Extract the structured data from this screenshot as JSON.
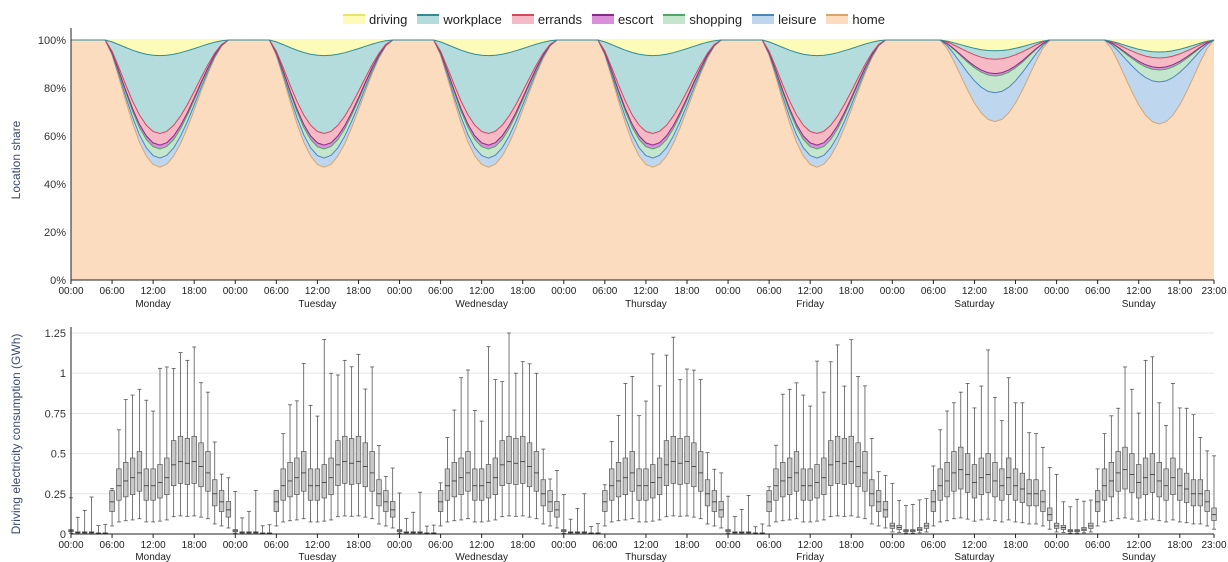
{
  "legend": [
    "driving",
    "workplace",
    "errands",
    "escort",
    "shopping",
    "leisure",
    "home"
  ],
  "colors": {
    "driving": {
      "fill": "#fdfbb8",
      "stroke": "#e8e36a"
    },
    "workplace": {
      "fill": "#b5dcdc",
      "stroke": "#2e8c98"
    },
    "errands": {
      "fill": "#f6bac6",
      "stroke": "#d8455f"
    },
    "escort": {
      "fill": "#d98fd9",
      "stroke": "#8c2a8c"
    },
    "shopping": {
      "fill": "#c4e6cc",
      "stroke": "#4ea865"
    },
    "leisure": {
      "fill": "#bfd6ef",
      "stroke": "#4d86c2"
    },
    "home": {
      "fill": "#fcdcbf",
      "stroke": "#d9a56e"
    },
    "box_fill": "#c8c8c8",
    "box_stroke": "#555555",
    "grid": "#e6e6e6",
    "axis_label": "#3a4a6b"
  },
  "chart_data": [
    {
      "type": "area",
      "stacked": true,
      "ylabel": "Location share",
      "ylim": [
        0,
        1
      ],
      "yticks": [
        "0%",
        "20%",
        "40%",
        "60%",
        "80%",
        "100%"
      ],
      "x_hours": [
        0,
        167
      ],
      "xtick_labels": [
        "00:00",
        "06:00",
        "12:00",
        "18:00",
        "00:00",
        "06:00",
        "12:00",
        "18:00",
        "00:00",
        "06:00",
        "12:00",
        "18:00",
        "00:00",
        "06:00",
        "12:00",
        "18:00",
        "00:00",
        "06:00",
        "12:00",
        "18:00",
        "00:00",
        "06:00",
        "12:00",
        "18:00",
        "00:00",
        "06:00",
        "12:00",
        "18:00",
        "00:00",
        "06:00",
        "12:00",
        "18:00",
        "00:00",
        "06:00",
        "12:00",
        "18:00",
        "00:00",
        "06:00",
        "12:00",
        "18:00",
        "00:00",
        "06:00",
        "12:00",
        "18:00",
        "00:00",
        "06:00",
        "12:00",
        "18:00",
        "00:00",
        "06:00",
        "12:00",
        "18:00",
        "00:00",
        "06:00",
        "12:00",
        "18:00",
        "00:00",
        "06:00",
        "12:00",
        "18:00",
        "00:00",
        "06:00",
        "12:00",
        "18:00",
        "00:00",
        "06:00",
        "12:00",
        "18:00",
        "00:00",
        "06:00",
        "12:00",
        "18:00",
        "00:00",
        "06:00",
        "12:00",
        "18:00",
        "00:00",
        "06:00",
        "12:00",
        "18:00",
        "00:00",
        "06:00",
        "12:00",
        "18:00",
        "00:00",
        "06:00",
        "12:00",
        "18:00",
        "00:00",
        "06:00",
        "12:00",
        "18:00",
        "00:00",
        "06:00",
        "12:00",
        "18:00",
        "00:00",
        "06:00",
        "12:00",
        "18:00",
        "00:00",
        "06:00",
        "12:00",
        "18:00",
        "00:00",
        "06:00",
        "12:00",
        "18:00",
        "00:00",
        "06:00",
        "12:00",
        "18:00",
        "00:00",
        "06:00",
        "12:00",
        "18:00",
        "00:00",
        "06:00",
        "12:00",
        "18:00",
        "00:00",
        "06:00",
        "12:00",
        "18:00",
        "00:00",
        "06:00",
        "12:00",
        "18:00",
        "00:00",
        "06:00",
        "12:00",
        "18:00",
        "00:00",
        "06:00",
        "12:00",
        "18:00",
        "00:00",
        "06:00",
        "12:00",
        "18:00",
        "00:00",
        "06:00",
        "12:00",
        "18:00",
        "00:00",
        "06:00",
        "12:00",
        "18:00",
        "00:00",
        "06:00",
        "12:00",
        "18:00",
        "00:00",
        "06:00",
        "12:00",
        "18:00",
        "00:00",
        "06:00",
        "12:00",
        "18:00",
        "00:00",
        "06:00",
        "12:00",
        "18:00",
        "23:00"
      ],
      "days": [
        "Monday",
        "Tuesday",
        "Wednesday",
        "Thursday",
        "Friday",
        "Saturday",
        "Sunday"
      ],
      "profiles": {
        "weekday": {
          "home_min": 0.47,
          "leisure": 0.035,
          "shopping": 0.035,
          "escort": 0.015,
          "errands": 0.045,
          "workplace": 0.3,
          "driving": 0.06
        },
        "saturday": {
          "home_min": 0.66,
          "leisure": 0.12,
          "shopping": 0.07,
          "escort": 0.01,
          "errands": 0.06,
          "workplace": 0.035,
          "driving": 0.045
        },
        "sunday": {
          "home_min": 0.65,
          "leisure": 0.175,
          "shopping": 0.05,
          "escort": 0.01,
          "errands": 0.04,
          "workplace": 0.025,
          "driving": 0.05
        }
      }
    },
    {
      "type": "box",
      "ylabel": "Driving electricity consumption (GWh)",
      "ylim": [
        0,
        1.25
      ],
      "yticks": [
        "0",
        "0.25",
        "0.5",
        "0.75",
        "1",
        "1.25"
      ],
      "xtick_labels": [
        "00:00",
        "06:00",
        "12:00",
        "18:00",
        "00:00",
        "06:00",
        "12:00",
        "18:00",
        "00:00",
        "06:00",
        "12:00",
        "18:00",
        "00:00",
        "06:00",
        "12:00",
        "18:00",
        "00:00",
        "06:00",
        "12:00",
        "18:00",
        "00:00",
        "06:00",
        "12:00",
        "18:00",
        "00:00",
        "06:00",
        "12:00",
        "18:00",
        "23:00"
      ],
      "days": [
        "Monday",
        "Tuesday",
        "Wednesday",
        "Thursday",
        "Friday",
        "Saturday",
        "Sunday"
      ],
      "weekday_median": [
        0.02,
        0.01,
        0.01,
        0.01,
        0.005,
        0.005,
        0.2,
        0.3,
        0.33,
        0.35,
        0.38,
        0.3,
        0.3,
        0.32,
        0.35,
        0.43,
        0.45,
        0.44,
        0.45,
        0.42,
        0.38,
        0.25,
        0.2,
        0.15
      ],
      "weekday_max": [
        0.25,
        0.1,
        0.15,
        0.25,
        0.05,
        0.06,
        0.3,
        0.6,
        0.82,
        0.9,
        1.0,
        0.8,
        0.78,
        1.12,
        0.98,
        1.03,
        1.2,
        1.0,
        1.14,
        0.98,
        0.98,
        0.55,
        0.38,
        0.38
      ],
      "weekend_median": [
        0.05,
        0.04,
        0.02,
        0.02,
        0.03,
        0.05,
        0.2,
        0.3,
        0.33,
        0.38,
        0.4,
        0.37,
        0.32,
        0.35,
        0.37,
        0.33,
        0.3,
        0.35,
        0.3,
        0.28,
        0.25,
        0.25,
        0.2,
        0.12
      ],
      "weekend_max": [
        0.35,
        0.2,
        0.18,
        0.2,
        0.2,
        0.22,
        0.45,
        0.6,
        0.75,
        0.85,
        0.98,
        0.9,
        0.8,
        1.0,
        1.08,
        0.85,
        0.75,
        0.9,
        0.8,
        0.85,
        0.7,
        0.6,
        0.55,
        0.45
      ]
    }
  ]
}
